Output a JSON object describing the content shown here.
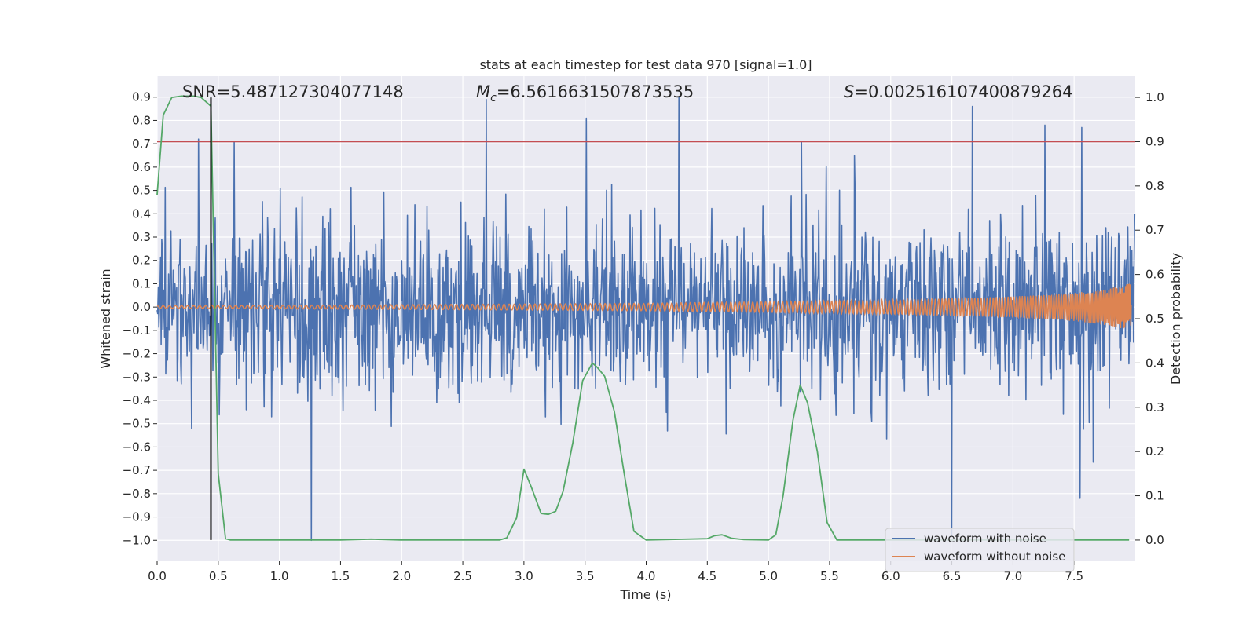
{
  "chart_data": {
    "type": "line",
    "title": "stats at each timestep for test data 970 [signal=1.0]",
    "xlabel": "Time (s)",
    "ylabel": "Whitened strain",
    "ylabel_right": "Detection probability",
    "xlim": [
      0.0,
      8.0
    ],
    "ylim": [
      -1.09,
      0.99
    ],
    "ylim_right": [
      -0.048,
      1.048
    ],
    "x_ticks": [
      "0.0",
      "0.5",
      "1.0",
      "1.5",
      "2.0",
      "2.5",
      "3.0",
      "3.5",
      "4.0",
      "4.5",
      "5.0",
      "5.5",
      "6.0",
      "6.5",
      "7.0",
      "7.5"
    ],
    "y_ticks": [
      "0.9",
      "0.8",
      "0.7",
      "0.6",
      "0.5",
      "0.4",
      "0.3",
      "0.2",
      "0.1",
      "0.0",
      "−0.1",
      "−0.2",
      "−0.3",
      "−0.4",
      "−0.5",
      "−0.6",
      "−0.7",
      "−0.8",
      "−0.9",
      "−1.0"
    ],
    "y_ticks_right": [
      "1.0",
      "0.9",
      "0.8",
      "0.7",
      "0.6",
      "0.5",
      "0.4",
      "0.3",
      "0.2",
      "0.1",
      "0.0"
    ],
    "annotations": {
      "snr": "SNR=5.487127304077148",
      "mc_symbol": "M",
      "mc_sub": "c",
      "mc_value": "=6.5616631507873535",
      "s_symbol": "S",
      "s_value": "=0.002516107400879264"
    },
    "legend": {
      "placement": "lower-right",
      "entries": [
        "waveform with noise",
        "waveform without noise"
      ]
    },
    "colors": {
      "noise": "#4c72b0",
      "clean": "#dd8452",
      "probability": "#55a868",
      "threshold": "#c44e52",
      "marker": "#000000",
      "background": "#eaeaf2"
    },
    "threshold_probability": 0.9,
    "marker_time": 0.44,
    "series": [
      {
        "name": "waveform with noise",
        "description": "noisy whitened strain spanning roughly -1.0 to 0.9",
        "peaks": [
          [
            0.34,
            0.72
          ],
          [
            0.63,
            0.71
          ],
          [
            1.26,
            -1.0
          ],
          [
            2.69,
            0.89
          ],
          [
            3.51,
            0.81
          ],
          [
            4.27,
            0.9
          ],
          [
            5.27,
            0.71
          ],
          [
            6.5,
            -0.98
          ],
          [
            6.67,
            0.86
          ],
          [
            7.26,
            0.78
          ],
          [
            7.56,
            0.77
          ],
          [
            7.55,
            -0.82
          ]
        ]
      },
      {
        "name": "waveform without noise",
        "description": "chirp signal with amplitude growing toward merger near t=7.98 s",
        "amplitude": [
          [
            0.0,
            0.006
          ],
          [
            2.0,
            0.01
          ],
          [
            4.0,
            0.016
          ],
          [
            6.0,
            0.03
          ],
          [
            7.0,
            0.045
          ],
          [
            7.5,
            0.06
          ],
          [
            7.8,
            0.08
          ],
          [
            7.95,
            0.1
          ]
        ]
      },
      {
        "name": "detection probability",
        "axis": "right",
        "x": [
          0.0,
          0.05,
          0.12,
          0.2,
          0.3,
          0.36,
          0.44,
          0.5,
          0.56,
          0.6,
          0.8,
          1.0,
          1.5,
          1.75,
          2.0,
          2.5,
          2.8,
          2.86,
          2.94,
          3.0,
          3.06,
          3.14,
          3.2,
          3.26,
          3.32,
          3.4,
          3.48,
          3.56,
          3.6,
          3.66,
          3.74,
          3.82,
          3.9,
          4.0,
          4.5,
          4.56,
          4.62,
          4.7,
          4.8,
          5.0,
          5.06,
          5.12,
          5.2,
          5.26,
          5.32,
          5.4,
          5.48,
          5.56,
          6.0,
          7.0,
          7.3,
          7.6,
          7.95
        ],
        "y": [
          0.78,
          0.96,
          1.0,
          1.003,
          1.003,
          1.0,
          0.98,
          0.15,
          0.003,
          0.0,
          0.0,
          0.0,
          0.0,
          0.002,
          0.0,
          0.0,
          0.0,
          0.005,
          0.05,
          0.16,
          0.12,
          0.06,
          0.058,
          0.065,
          0.11,
          0.22,
          0.36,
          0.4,
          0.39,
          0.37,
          0.29,
          0.15,
          0.02,
          0.0,
          0.003,
          0.01,
          0.012,
          0.004,
          0.001,
          0.0,
          0.012,
          0.1,
          0.27,
          0.35,
          0.31,
          0.2,
          0.04,
          0.0,
          0.0,
          0.0,
          0.0,
          0.0,
          0.0
        ]
      }
    ]
  }
}
